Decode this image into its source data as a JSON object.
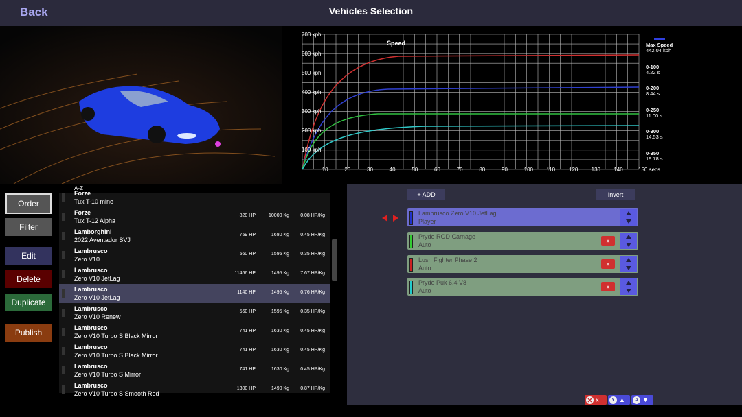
{
  "header": {
    "back": "Back",
    "title": "Vehicles Selection"
  },
  "graph": {
    "title": "Speed",
    "y_labels": [
      "700 kph",
      "600 kph",
      "500 kph",
      "400 kph",
      "300 kph",
      "200 kph",
      "100 kph"
    ],
    "x_labels": [
      "10",
      "20",
      "30",
      "40",
      "50",
      "60",
      "70",
      "80",
      "90",
      "100",
      "110",
      "120",
      "130",
      "140",
      "150 secs"
    ],
    "stats": [
      {
        "label": "Max Speed",
        "value": "442.04 kph"
      },
      {
        "label": "0-100",
        "value": "4.22 s"
      },
      {
        "label": "0-200",
        "value": "8.44 s"
      },
      {
        "label": "0-250",
        "value": "11.00 s"
      },
      {
        "label": "0-300",
        "value": "14.53 s"
      },
      {
        "label": "0-350",
        "value": "19.78 s"
      }
    ]
  },
  "buttons": [
    "Order",
    "Filter",
    "Edit",
    "Delete",
    "Duplicate",
    "Publish"
  ],
  "list": {
    "sort": "A-Z",
    "rows": [
      {
        "brand": "Forze",
        "model": "Tux T-10 mine"
      },
      {
        "brand": "Forze",
        "model": "Tux T-12 Alpha",
        "hp": "820 HP",
        "weight": "10000 Kg",
        "ratio": "0.08 HP/Kg"
      },
      {
        "brand": "Lamborghini",
        "model": "2022 Aventador SVJ",
        "hp": "759 HP",
        "weight": "1680 Kg",
        "ratio": "0.45 HP/Kg"
      },
      {
        "brand": "Lambrusco",
        "model": "Zero V10",
        "hp": "560 HP",
        "weight": "1595 Kg",
        "ratio": "0.35 HP/Kg"
      },
      {
        "brand": "Lambrusco",
        "model": "Zero V10 JetLag",
        "hp": "11466 HP",
        "weight": "1495 Kg",
        "ratio": "7.67 HP/Kg"
      },
      {
        "brand": "Lambrusco",
        "model": "Zero V10 JetLag",
        "hp": "1140 HP",
        "weight": "1495 Kg",
        "ratio": "0.76 HP/Kg"
      },
      {
        "brand": "Lambrusco",
        "model": "Zero V10 Renew",
        "hp": "560 HP",
        "weight": "1595 Kg",
        "ratio": "0.35 HP/Kg"
      },
      {
        "brand": "Lambrusco",
        "model": "Zero V10 Turbo S Black Mirror",
        "hp": "741 HP",
        "weight": "1630 Kg",
        "ratio": "0.45 HP/Kg"
      },
      {
        "brand": "Lambrusco",
        "model": "Zero V10 Turbo S Black Mirror",
        "hp": "741 HP",
        "weight": "1630 Kg",
        "ratio": "0.45 HP/Kg"
      },
      {
        "brand": "Lambrusco",
        "model": "Zero V10 Turbo S Mirror",
        "hp": "741 HP",
        "weight": "1630 Kg",
        "ratio": "0.45 HP/Kg"
      },
      {
        "brand": "Lambrusco",
        "model": "Zero V10 Turbo S Smooth Red",
        "hp": "1300 HP",
        "weight": "1490 Kg",
        "ratio": "0.87 HP/Kg"
      }
    ]
  },
  "players": {
    "add": "+ ADD",
    "invert": "Invert",
    "remove": "x",
    "slots": [
      {
        "name": "Lambrusco Zero V10 JetLag",
        "role": "Player",
        "color": "#2233cc"
      },
      {
        "name": "Pryde ROD Carnage",
        "role": "Auto",
        "color": "#33cc33"
      },
      {
        "name": "Lush Fighter Phase 2",
        "role": "Auto",
        "color": "#cc2222"
      },
      {
        "name": "Pryde Puk 6.4 V8",
        "role": "Auto",
        "color": "#22cccc"
      }
    ]
  },
  "hints": [
    {
      "label": "x"
    },
    {
      "key": "Y",
      "label": "▲"
    },
    {
      "key": "A",
      "label": "▼"
    }
  ]
}
